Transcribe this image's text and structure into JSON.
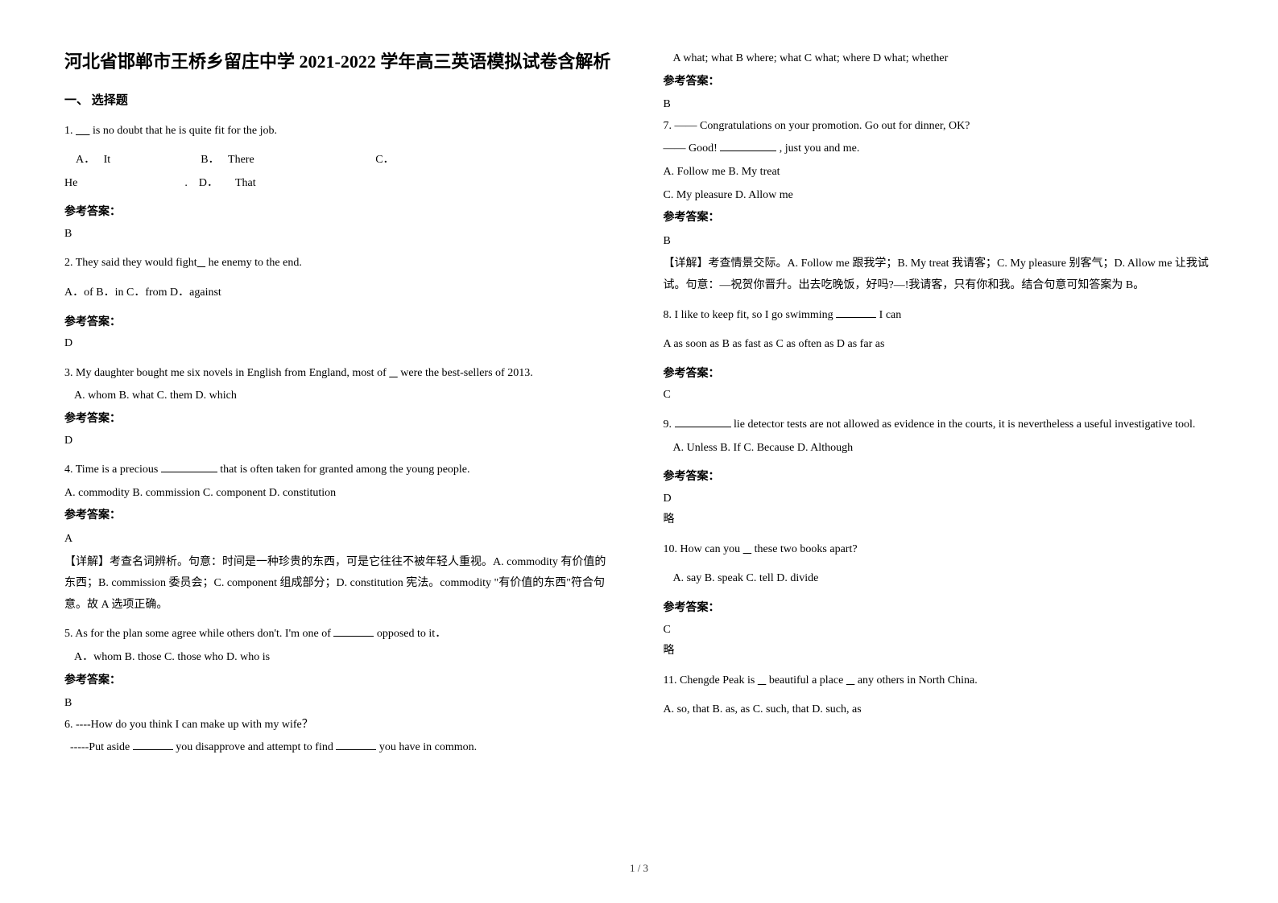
{
  "title": "河北省邯郸市王桥乡留庄中学 2021-2022 学年高三英语模拟试卷含解析",
  "sectionHead": "一、 选择题",
  "footer": "1 / 3",
  "ansLabel": "参考答案：",
  "explainLabel": "【详解】",
  "abbrevLabel": "略",
  "q1_text_a": "1. ",
  "q1_text_b": "is  no doubt that he is quite fit for the job.",
  "q1_optA_pre": "A．",
  "q1_optA": "It",
  "q1_optB_pre": "B．",
  "q1_optB": "There",
  "q1_optC_pre": "C．",
  "q1_optC_pre2": "He",
  "q1_optD_pre": "D．",
  "q1_optD": "That",
  "q1_ans": "B",
  "q2_text_a": "2. They said they would fight",
  "q2_text_b": "he enemy to the end.",
  "q2_opts": "A．of       B．in  C．from        D．against",
  "q2_ans": "D",
  "q3_text_a": "3. My daughter bought me six novels in English from England, most of ",
  "q3_text_b": "were the best-sellers of 2013.",
  "q3_opts": "A. whom      B. what        C. them        D. which",
  "q3_ans": "D",
  "q4_text_a": "4. Time is a precious ",
  "q4_text_b": " that is often taken for granted among the young people.",
  "q4_opts": "A. commodity    B. commission   C. component   D. constitution",
  "q4_ans": "A",
  "q4_explain": "考查名词辨析。句意：时间是一种珍贵的东西，可是它往往不被年轻人重视。A. commodity 有价值的东西；B. commission 委员会；C. component 组成部分；D. constitution 宪法。commodity \"有价值的东西\"符合句意。故 A 选项正确。",
  "q5_text_a": "5. As for the plan some agree while others don't. I'm one of ",
  "q5_text_b": " opposed to it．",
  "q5_opts": "A．whom      B. those        C. those who     D. who is",
  "q5_ans": "B",
  "q6_text": "6. ----How do you think I can make up with my wife？",
  "q6_line2_a": "-----Put aside ",
  "q6_line2_b": " you disapprove and attempt to find ",
  "q6_line2_c": " you have in common.",
  "q6_opts": "A what; what    B where; what   C what; where     D what; whether",
  "q6_ans": "B",
  "q7_text": "7. —— Congratulations on your promotion. Go out for dinner, OK?",
  "q7_line2_a": "—— Good! ",
  "q7_line2_b": ", just you and me.",
  "q7_optsA": "A. Follow me    B. My treat",
  "q7_optsB": "C. My pleasure    D. Allow me",
  "q7_ans": "B",
  "q7_explain": "考查情景交际。A. Follow me 跟我学；B. My treat 我请客；C. My pleasure 别客气；D. Allow me 让我试试。句意：—祝贺你晋升。出去吃晚饭，好吗?—!我请客，只有你和我。结合句意可知答案为 B。",
  "q8_text_a": "8.  I like to keep fit, so I go swimming ",
  "q8_text_b": "I can",
  "q8_opts": "A as soon as        B as fast as        C as often as        D as far as",
  "q8_ans": "C",
  "q9_text_a": "9. ",
  "q9_text_b": "lie detector tests are not allowed as evidence in the courts, it is nevertheless a useful investigative tool.",
  "q9_opts": "A. Unless                     B. If                               C. Because           D. Although",
  "q9_ans": "D",
  "q10_text_a": "10. How can you ",
  "q10_text_b": " these two books apart?",
  "q10_opts": "A. say         B. speak        C. tell          D. divide",
  "q10_ans": "C",
  "q11_text_a": "11. Chengde Peak is ",
  "q11_text_b": " beautiful a place ",
  "q11_text_c": " any others in North China.",
  "q11_opts": "A. so, that    B. as, as     C. such, that    D. such, as"
}
